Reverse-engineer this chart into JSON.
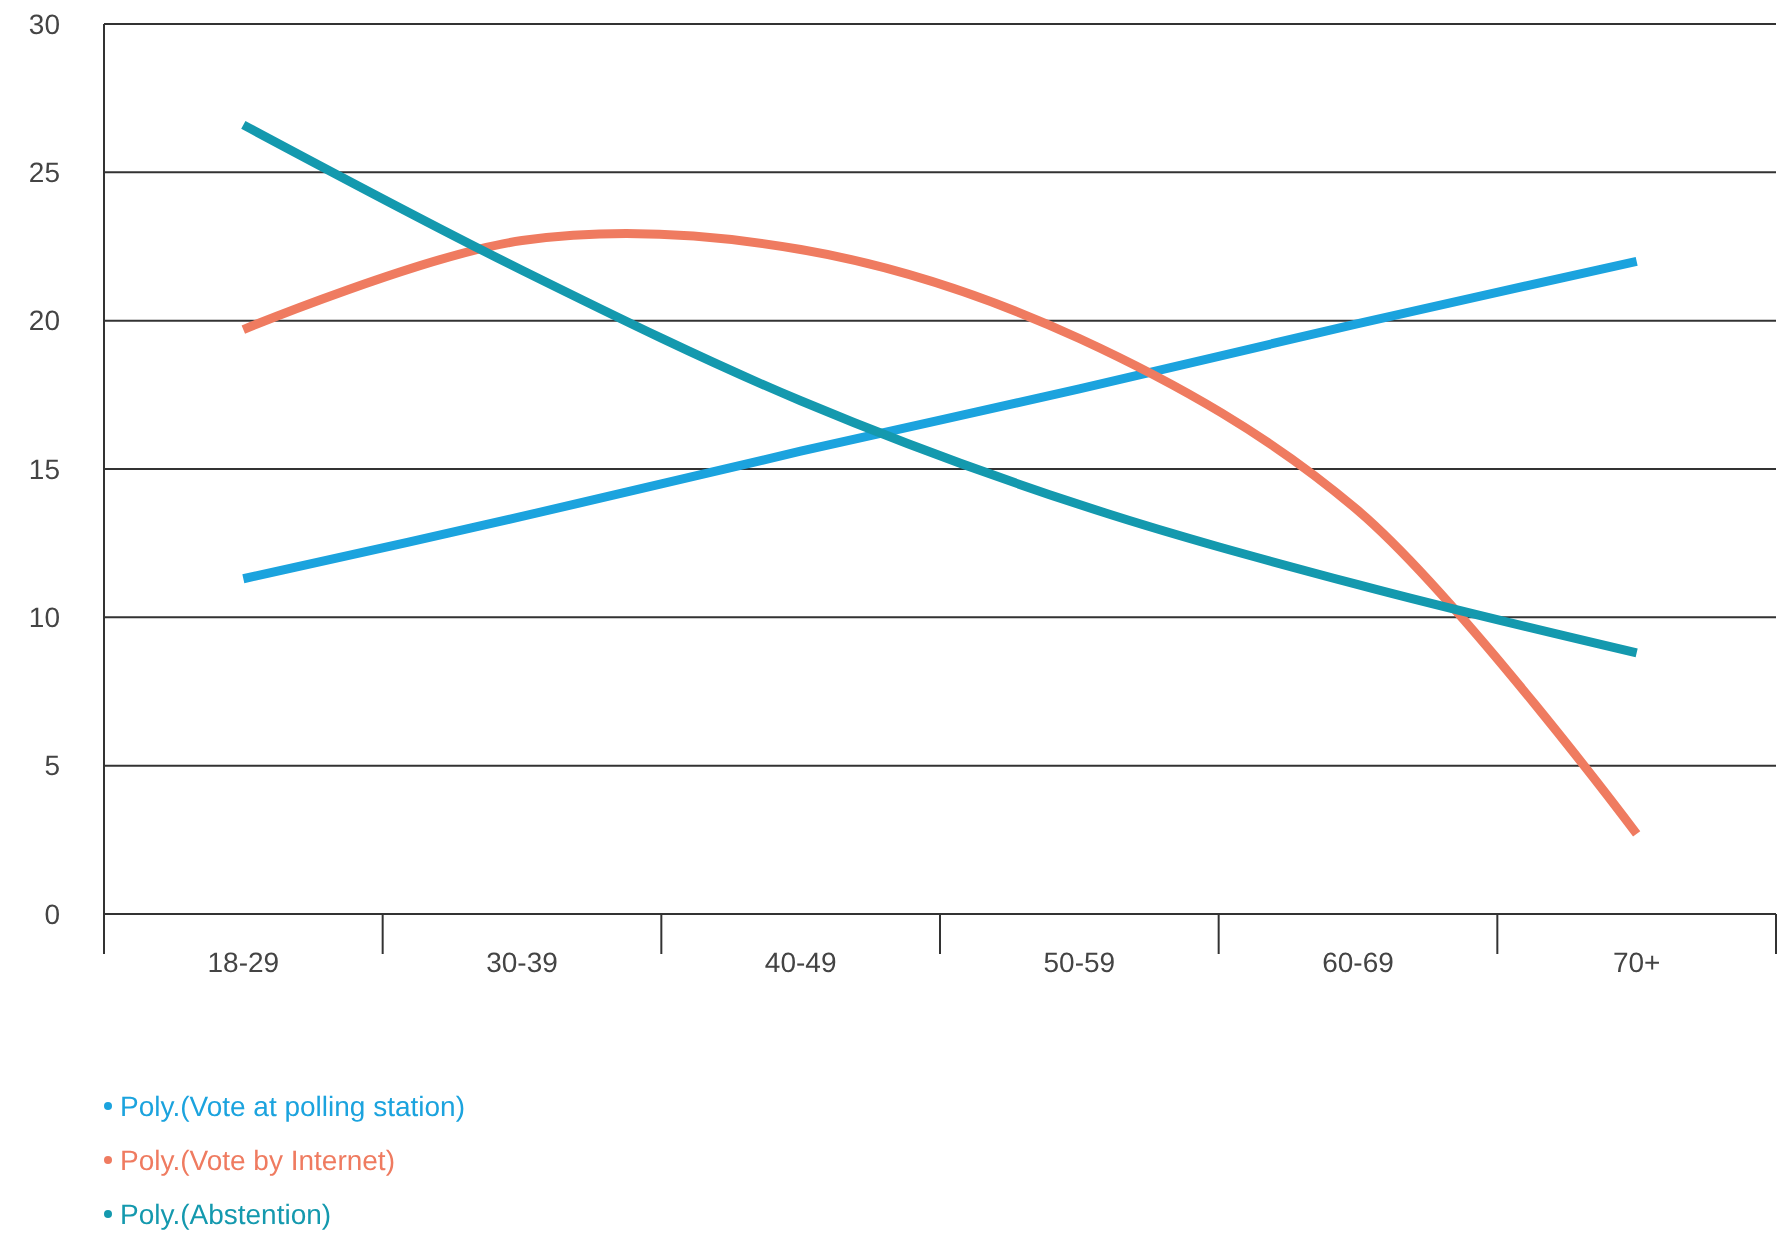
{
  "chart_data": {
    "type": "line",
    "categories": [
      "18-29",
      "30-39",
      "40-49",
      "50-59",
      "60-69",
      "70+"
    ],
    "series": [
      {
        "name": "Poly.(Vote at polling station)",
        "color": "#1ba3de",
        "values": [
          11.3,
          13.4,
          15.6,
          17.7,
          19.9,
          22.0
        ]
      },
      {
        "name": "Poly.(Vote by Internet)",
        "color": "#ef7b60",
        "values": [
          19.7,
          22.7,
          22.4,
          19.4,
          13.6,
          2.7
        ]
      },
      {
        "name": "Poly.(Abstention)",
        "color": "#1499ae",
        "values": [
          26.6,
          21.7,
          17.3,
          13.8,
          11.1,
          8.8
        ]
      }
    ],
    "ylim": [
      0,
      30
    ],
    "yticks": [
      0,
      5,
      10,
      15,
      20,
      25,
      30
    ],
    "grid": "y",
    "legend": "bottom",
    "marker": "none",
    "line_style": "solid"
  }
}
